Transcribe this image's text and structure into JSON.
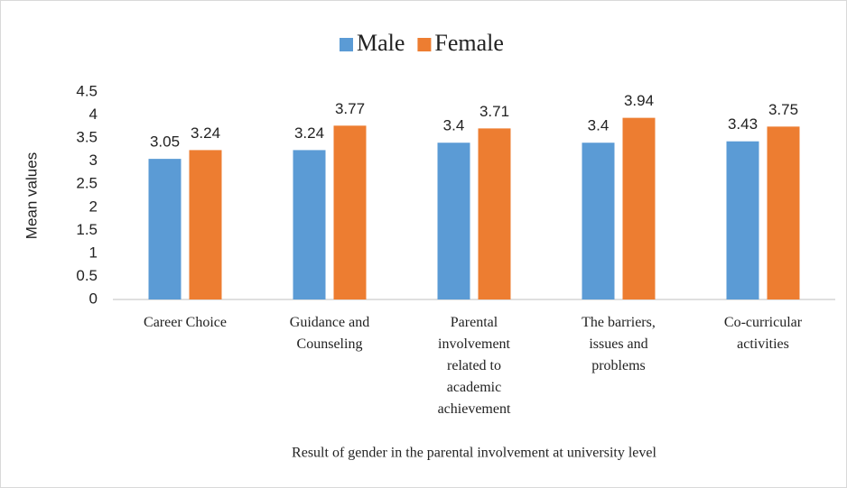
{
  "chart_data": {
    "type": "bar",
    "x_label": "Result of gender in the parental involvement at university level",
    "y_label": "Mean values",
    "categories": [
      "Career Choice",
      "Guidance and Counseling",
      "Parental involvement related to academic achievement",
      "The barriers, issues and problems",
      "Co-curricular activities"
    ],
    "series": [
      {
        "name": "Male",
        "color": "#5b9bd5",
        "values": [
          3.05,
          3.24,
          3.4,
          3.4,
          3.43
        ]
      },
      {
        "name": "Female",
        "color": "#ed7d31",
        "values": [
          3.24,
          3.77,
          3.71,
          3.94,
          3.75
        ]
      }
    ],
    "ylim": [
      0,
      4.5
    ],
    "yticks": [
      0,
      0.5,
      1,
      1.5,
      2,
      2.5,
      3,
      3.5,
      4,
      4.5
    ],
    "grid": false,
    "legend": "top"
  }
}
